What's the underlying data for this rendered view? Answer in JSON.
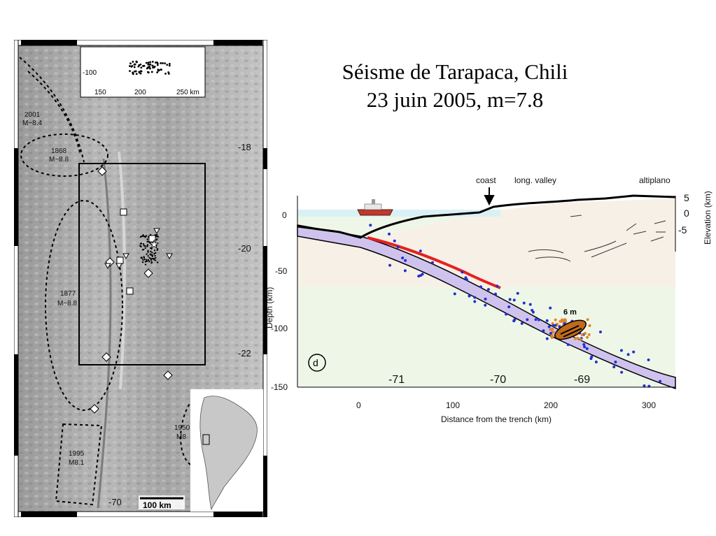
{
  "title": {
    "line1": "Séisme de Tarapaca, Chili",
    "line2": "23 juin 2005, m=7.8"
  },
  "map": {
    "inset": {
      "ytick": "-100",
      "xticks": [
        "150",
        "200",
        "250 km"
      ]
    },
    "latitudes": [
      "-18",
      "-20",
      "-22"
    ],
    "longitude": "-70",
    "scalebar": "100 km",
    "historic_events": [
      {
        "label": "2001",
        "mag": "M~8.4"
      },
      {
        "label": "1868",
        "mag": "M~8.8"
      },
      {
        "label": "1877",
        "mag": "M~8.8"
      },
      {
        "label": "1995",
        "mag": "M8.1"
      },
      {
        "label": "1950",
        "mag": "M8"
      }
    ]
  },
  "section": {
    "labels": {
      "coast": "coast",
      "valley": "long. valley",
      "altiplano": "altiplano",
      "slip": "6 m",
      "panel": "d"
    },
    "ylabel": "Depth (km)",
    "xlabel": "Distance from the trench (km)",
    "y2label": "Elevation (km)",
    "yticks": [
      "0",
      "-50",
      "-100",
      "-150"
    ],
    "y2ticks": [
      "5",
      "0",
      "-5"
    ],
    "xticks": [
      "0",
      "100",
      "200",
      "300"
    ],
    "longitudes": [
      "-71",
      "-70",
      "-69"
    ]
  },
  "colors": {
    "slab": "#cfc3ee",
    "mantle": "#eef6e8",
    "crust": "#f7f0e6",
    "sea": "#d9f1f4",
    "rupture": "#e62020",
    "deep_events": "#2030d0",
    "shallow_events": "#e0842a"
  }
}
